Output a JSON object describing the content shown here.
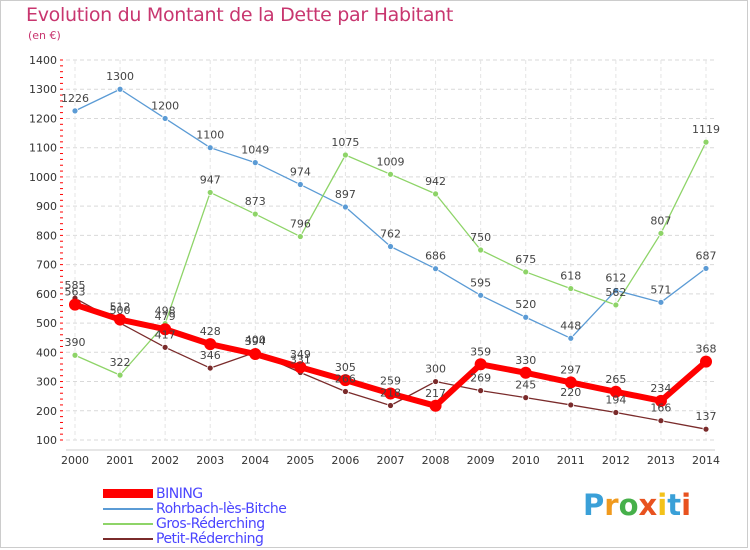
{
  "title": "Evolution du Montant de la Dette par Habitant",
  "subtitle": "(en €)",
  "logo": {
    "text": "Proxiti",
    "colors": [
      "#3aa0d8",
      "#f09a1e",
      "#46b04a",
      "#e8521f",
      "#f3c21a",
      "#3aa0d8",
      "#e8521f"
    ]
  },
  "chart_data": {
    "type": "line",
    "title": "Evolution du Montant de la Dette par Habitant",
    "subtitle": "(en €)",
    "xlabel": "",
    "ylabel": "",
    "ylim": [
      100,
      1400
    ],
    "yticks": [
      "100",
      "200",
      "300",
      "400",
      "500",
      "600",
      "700",
      "800",
      "900",
      "1000",
      "1100",
      "1200",
      "1300",
      "1400"
    ],
    "x": [
      "2000",
      "2001",
      "2002",
      "2003",
      "2004",
      "2005",
      "2006",
      "2007",
      "2008",
      "2009",
      "2010",
      "2011",
      "2012",
      "2013",
      "2014"
    ],
    "grid": "horizontal dashed",
    "legend_position": "bottom-left",
    "series": [
      {
        "name": "BINING",
        "color": "#ff0000",
        "values": [
          563,
          512,
          479,
          428,
          394,
          349,
          305,
          259,
          217,
          359,
          330,
          297,
          265,
          234,
          368
        ]
      },
      {
        "name": "Rohrbach-lès-Bitche",
        "color": "#5b9bd5",
        "values": [
          1226,
          1300,
          1200,
          1100,
          1049,
          974,
          897,
          762,
          686,
          595,
          520,
          448,
          612,
          571,
          687
        ]
      },
      {
        "name": "Gros-Réderching",
        "color": "#8ed468",
        "values": [
          390,
          322,
          498,
          947,
          873,
          796,
          1075,
          1009,
          942,
          750,
          675,
          618,
          562,
          807,
          1119
        ]
      },
      {
        "name": "Petit-Réderching",
        "color": "#7a2b2b",
        "values": [
          585,
          500,
          417,
          346,
          400,
          331,
          266,
          218,
          300,
          269,
          245,
          220,
          194,
          166,
          137
        ]
      }
    ]
  }
}
